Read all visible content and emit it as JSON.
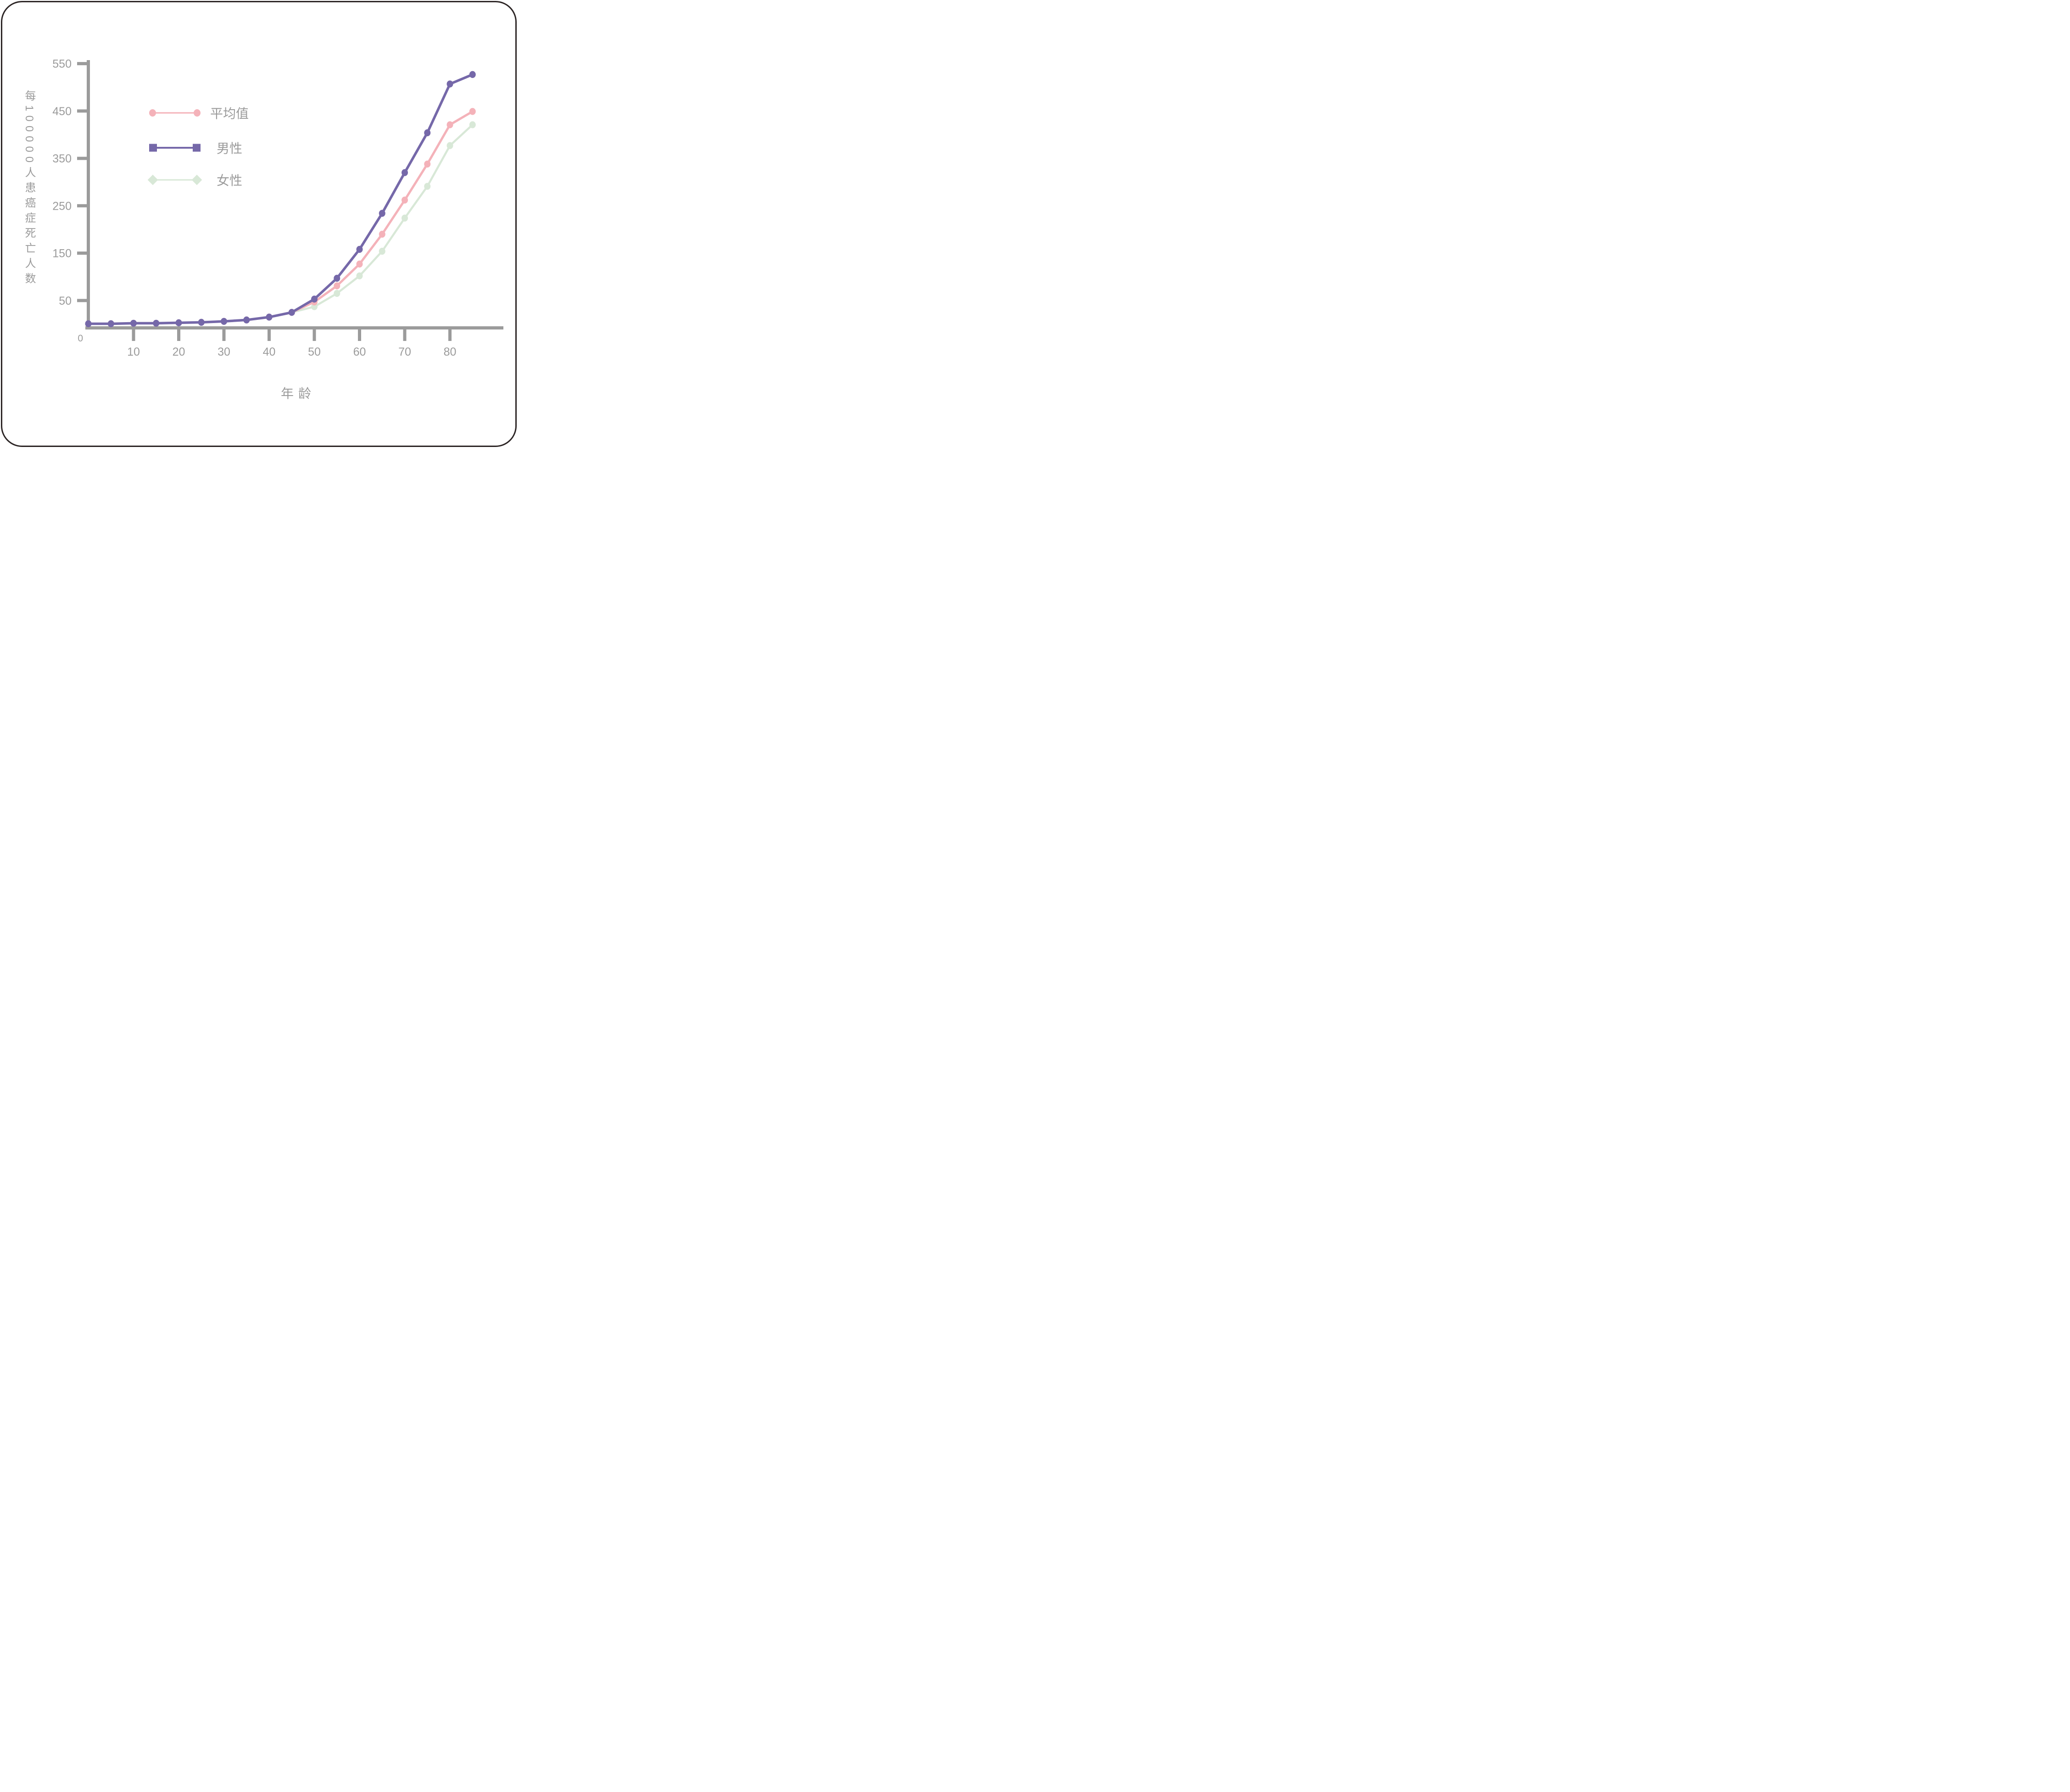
{
  "frame": {
    "border_color": "#2b2424",
    "background": "#ffffff"
  },
  "chart_data": {
    "type": "line",
    "title": "",
    "xlabel": "年龄",
    "ylabel": "每100000人患癌症死亡人数",
    "origin_label": "0",
    "x_ticks": [
      "10",
      "20",
      "30",
      "40",
      "50",
      "60",
      "70",
      "80"
    ],
    "x_tick_values": [
      10,
      20,
      30,
      40,
      50,
      60,
      70,
      80
    ],
    "y_ticks": [
      "50",
      "150",
      "250",
      "350",
      "450",
      "550"
    ],
    "y_tick_values": [
      50,
      150,
      250,
      350,
      450,
      550
    ],
    "xlim": [
      0,
      92
    ],
    "ylim": [
      0,
      560
    ],
    "grid": false,
    "axis_color": "#9b9b9b",
    "text_color": "#9b9b9b",
    "x": [
      0,
      5,
      10,
      15,
      20,
      25,
      30,
      35,
      40,
      45,
      50,
      55,
      60,
      65,
      70,
      75,
      80,
      85
    ],
    "series": [
      {
        "name": "平均值",
        "color": "#f4b2b9",
        "plot_marker": "circle",
        "values": [
          1,
          1,
          2,
          2,
          3,
          4,
          6,
          9,
          15,
          25,
          47,
          81,
          127,
          190,
          262,
          338,
          421,
          449
        ]
      },
      {
        "name": "男性",
        "color": "#7568a9",
        "plot_marker": "circle",
        "values": [
          1,
          1,
          2,
          2,
          3,
          4,
          6,
          9,
          15,
          25,
          53,
          97,
          158,
          234,
          320,
          404,
          507,
          527
        ]
      },
      {
        "name": "女性",
        "color": "#d8e8d7",
        "plot_marker": "circle",
        "values": [
          1,
          1,
          2,
          2,
          3,
          4,
          6,
          9,
          15,
          25,
          37,
          65,
          102,
          154,
          224,
          291,
          377,
          421
        ]
      }
    ],
    "legend": {
      "position": "inside-upper-left",
      "items": [
        {
          "label": "平均值",
          "marker": "circle",
          "color": "#f4b2b9"
        },
        {
          "label": "男性",
          "marker": "square",
          "color": "#7568a9"
        },
        {
          "label": "女性",
          "marker": "diamond",
          "color": "#d8e8d7"
        }
      ]
    }
  }
}
